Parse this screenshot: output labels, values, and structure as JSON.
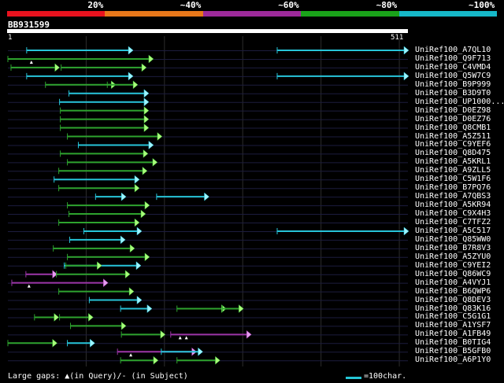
{
  "legend": {
    "colors": [
      "#e8121e",
      "#e8771a",
      "#9d2a9a",
      "#1aa21a",
      "#16b8c8"
    ],
    "labels": [
      "20%",
      "~40%",
      "~60%",
      "~80%",
      "~100%"
    ]
  },
  "query": {
    "id": "BB931599",
    "start_label": "1",
    "end_label": "511",
    "length": 511
  },
  "footer": {
    "gaps_label": "Large gaps: ▲(in Query)/- (in Subject)",
    "scale_label": "=100char."
  },
  "hits": [
    {
      "label": "UniRef100_A7QL10",
      "segs": [
        [
          24,
          159,
          "cyan"
        ],
        [
          344,
          511,
          "cyan"
        ]
      ]
    },
    {
      "label": "UniRef100_Q9F713",
      "segs": [
        [
          0,
          185,
          "green"
        ]
      ],
      "marks": [
        [
          30,
          "tri"
        ]
      ]
    },
    {
      "label": "UniRef100_C4VMD4",
      "segs": [
        [
          4,
          65,
          "green"
        ],
        [
          68,
          176,
          "green"
        ]
      ]
    },
    {
      "label": "UniRef100_Q5W7C9",
      "segs": [
        [
          24,
          159,
          "cyan"
        ],
        [
          344,
          511,
          "cyan"
        ]
      ]
    },
    {
      "label": "UniRef100_B9P999",
      "segs": [
        [
          48,
          137,
          "green"
        ],
        [
          127,
          165,
          "green"
        ]
      ]
    },
    {
      "label": "UniRef100_B3D9T0",
      "segs": [
        [
          78,
          179,
          "cyan"
        ]
      ]
    },
    {
      "label": "UniRef100_UP1000...",
      "segs": [
        [
          66,
          179,
          "cyan"
        ]
      ]
    },
    {
      "label": "UniRef100_D0EZ98",
      "segs": [
        [
          67,
          179,
          "green"
        ]
      ]
    },
    {
      "label": "UniRef100_D0EZ76",
      "segs": [
        [
          67,
          179,
          "green"
        ]
      ]
    },
    {
      "label": "UniRef100_Q8CMB1",
      "segs": [
        [
          67,
          179,
          "green"
        ]
      ]
    },
    {
      "label": "UniRef100_A5Z511",
      "segs": [
        [
          76,
          196,
          "green"
        ]
      ]
    },
    {
      "label": "UniRef100_C9YEF6",
      "segs": [
        [
          90,
          185,
          "cyan"
        ]
      ]
    },
    {
      "label": "UniRef100_Q8D475",
      "segs": [
        [
          67,
          178,
          "green"
        ]
      ]
    },
    {
      "label": "UniRef100_A5KRL1",
      "segs": [
        [
          76,
          190,
          "green"
        ]
      ]
    },
    {
      "label": "UniRef100_A9ZLL5",
      "segs": [
        [
          65,
          177,
          "green"
        ]
      ]
    },
    {
      "label": "UniRef100_C5W1F6",
      "segs": [
        [
          59,
          167,
          "cyan"
        ]
      ]
    },
    {
      "label": "UniRef100_B7PQ76",
      "segs": [
        [
          65,
          167,
          "green"
        ]
      ]
    },
    {
      "label": "UniRef100_A7QBS3",
      "segs": [
        [
          112,
          150,
          "cyan"
        ],
        [
          190,
          256,
          "cyan"
        ]
      ]
    },
    {
      "label": "UniRef100_A5KR94",
      "segs": [
        [
          76,
          180,
          "green"
        ]
      ]
    },
    {
      "label": "UniRef100_C9X4H3",
      "segs": [
        [
          78,
          175,
          "green"
        ]
      ]
    },
    {
      "label": "UniRef100_C7TFZ2",
      "segs": [
        [
          65,
          167,
          "green"
        ]
      ]
    },
    {
      "label": "UniRef100_A5C517",
      "segs": [
        [
          97,
          170,
          "cyan"
        ],
        [
          344,
          511,
          "cyan"
        ]
      ]
    },
    {
      "label": "UniRef100_Q85WW0",
      "segs": [
        [
          79,
          149,
          "cyan"
        ]
      ]
    },
    {
      "label": "UniRef100_B7R8V3",
      "segs": [
        [
          58,
          161,
          "green"
        ]
      ]
    },
    {
      "label": "UniRef100_A5ZYU0",
      "segs": [
        [
          76,
          180,
          "green"
        ]
      ]
    },
    {
      "label": "UniRef100_C9YEI2",
      "segs": [
        [
          72,
          169,
          "cyan"
        ],
        [
          74,
          119,
          "green"
        ]
      ]
    },
    {
      "label": "UniRef100_Q86WC9",
      "segs": [
        [
          23,
          62,
          "purple"
        ],
        [
          62,
          155,
          "green"
        ]
      ]
    },
    {
      "label": "UniRef100_A4VYJ1",
      "segs": [
        [
          5,
          127,
          "purple"
        ]
      ],
      "marks": [
        [
          27,
          "tri"
        ]
      ]
    },
    {
      "label": "UniRef100_B6QWP6",
      "segs": [
        [
          65,
          160,
          "green"
        ]
      ]
    },
    {
      "label": "UniRef100_Q8DEV3",
      "segs": [
        [
          104,
          170,
          "cyan"
        ]
      ]
    },
    {
      "label": "UniRef100_Q83K16",
      "segs": [
        [
          144,
          183,
          "cyan"
        ],
        [
          216,
          278,
          "green"
        ],
        [
          274,
          300,
          "green"
        ]
      ]
    },
    {
      "label": "UniRef100_C5G1G1",
      "segs": [
        [
          34,
          64,
          "green"
        ],
        [
          66,
          108,
          "green"
        ]
      ]
    },
    {
      "label": "UniRef100_A1YSF7",
      "segs": [
        [
          80,
          150,
          "green"
        ]
      ]
    },
    {
      "label": "UniRef100_A1FB49",
      "segs": [
        [
          145,
          200,
          "green"
        ],
        [
          208,
          310,
          "purple"
        ]
      ],
      "marks": [
        [
          220,
          "tri"
        ],
        [
          228,
          "tri"
        ]
      ]
    },
    {
      "label": "UniRef100_B0TIG4",
      "segs": [
        [
          0,
          62,
          "green"
        ],
        [
          76,
          110,
          "cyan"
        ]
      ]
    },
    {
      "label": "UniRef100_B5GFB0",
      "segs": [
        [
          140,
          240,
          "purple"
        ],
        [
          196,
          248,
          "cyan"
        ]
      ],
      "marks": [
        [
          157,
          "tri"
        ]
      ]
    },
    {
      "label": "UniRef100_A6P1Y0",
      "segs": [
        [
          144,
          191,
          "green"
        ],
        [
          216,
          270,
          "green"
        ]
      ]
    }
  ]
}
